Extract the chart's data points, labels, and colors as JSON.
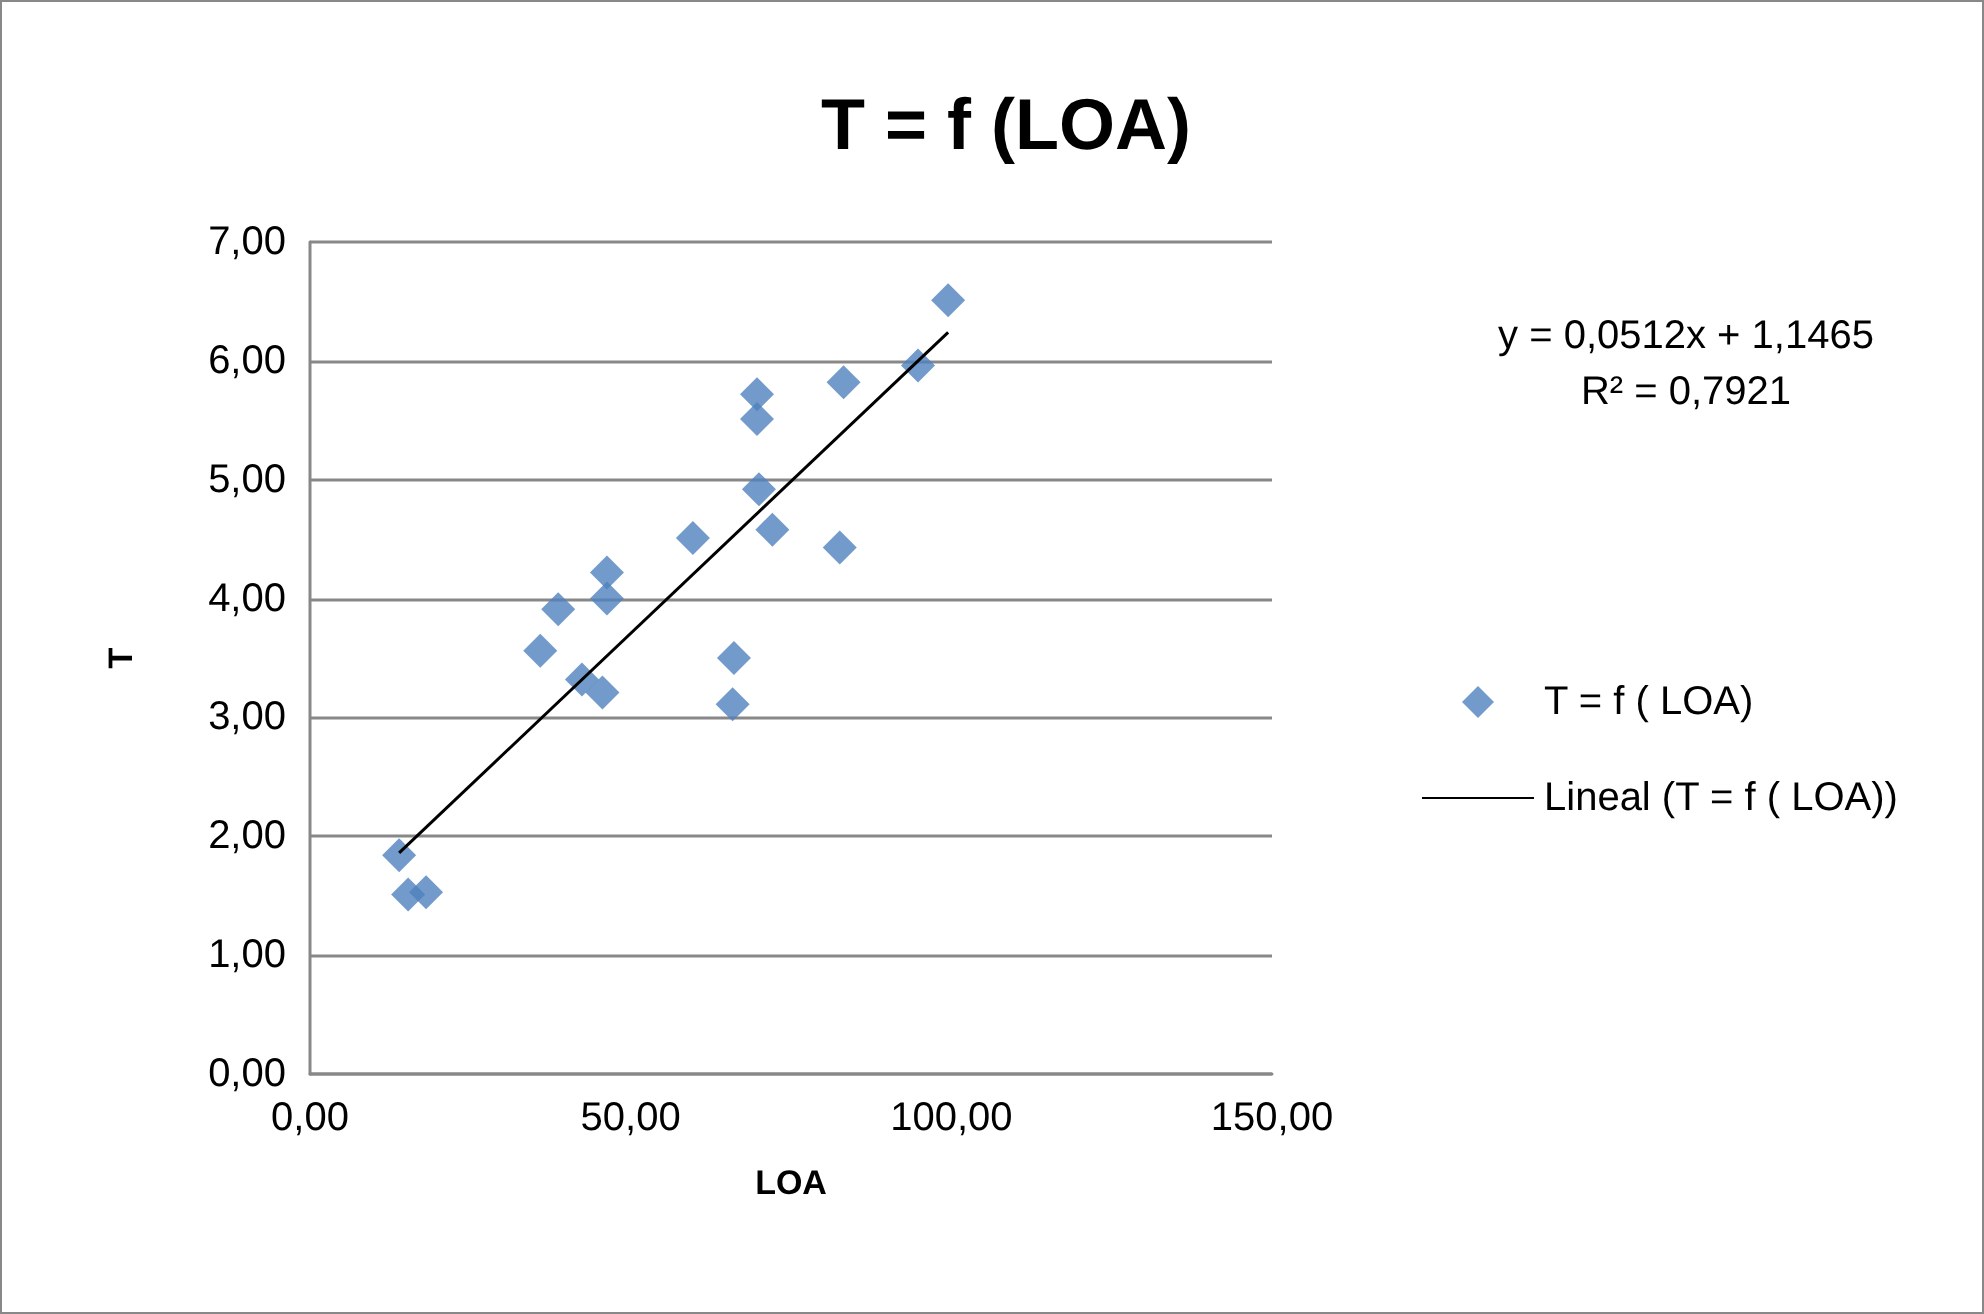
{
  "chart_data": {
    "type": "scatter",
    "title": "T = f (LOA)",
    "xlabel": "LOA",
    "ylabel": "T",
    "annotations": [
      "y = 0,0512x + 1,1465",
      "R² = 0,7921"
    ],
    "series": [
      {
        "name": "T = f ( LOA)",
        "color": "#4f81bd",
        "marker": "diamond",
        "x": [
          13.9,
          15.3,
          18.1,
          35.9,
          38.7,
          42.4,
          45.6,
          46.3,
          46.3,
          59.7,
          66.1,
          65.9,
          69.7,
          69.7,
          70.0,
          72.1,
          82.6,
          83.2,
          94.8,
          99.5
        ],
        "values": [
          1.84,
          1.51,
          1.53,
          3.56,
          3.91,
          3.32,
          3.21,
          4.22,
          4.0,
          4.51,
          3.5,
          3.11,
          5.72,
          5.51,
          4.92,
          4.58,
          4.43,
          5.82,
          5.96,
          6.51
        ]
      },
      {
        "name": "Lineal (T = f ( LOA))",
        "type": "line",
        "color": "#000000",
        "marker": "none",
        "line_style": "solid",
        "x": [
          13.9,
          99.5
        ],
        "values": [
          1.86,
          6.24
        ]
      }
    ],
    "xlim": [
      0,
      150
    ],
    "xticks": [
      {
        "value": 0,
        "label": "0,00"
      },
      {
        "value": 50,
        "label": "50,00"
      },
      {
        "value": 100,
        "label": "100,00"
      },
      {
        "value": 150,
        "label": "150,00"
      }
    ],
    "ylim": [
      0,
      7
    ],
    "yticks": [
      {
        "value": 0,
        "label": "0,00"
      },
      {
        "value": 1,
        "label": "1,00"
      },
      {
        "value": 2,
        "label": "2,00"
      },
      {
        "value": 3,
        "label": "3,00"
      },
      {
        "value": 4,
        "label": "4,00"
      },
      {
        "value": 5,
        "label": "5,00"
      },
      {
        "value": 6,
        "label": "6,00"
      },
      {
        "value": 7,
        "label": "7,00"
      }
    ],
    "grid": "y",
    "legend": "right"
  }
}
